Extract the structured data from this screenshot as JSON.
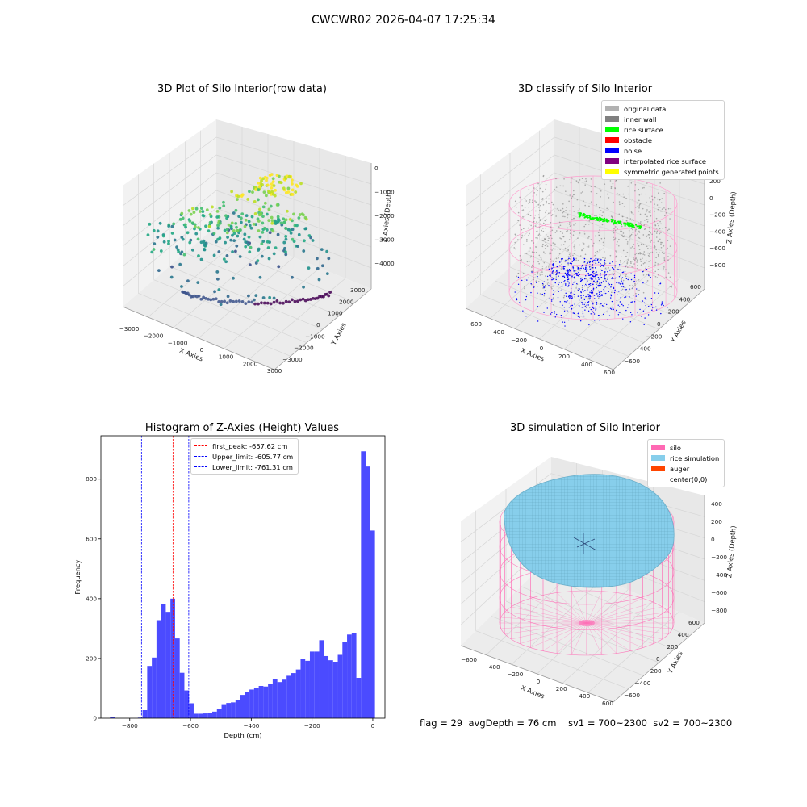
{
  "figure": {
    "suptitle": "CWCWR02 2026-04-07 17:25:34",
    "footer": {
      "flag": "flag = 29",
      "avg_depth": "avgDepth = 76 cm",
      "sv1": "sv1 = 700~2300",
      "sv2": "sv2 = 700~2300"
    }
  },
  "panels": {
    "raw": {
      "title": "3D Plot of Silo Interior(row data)",
      "xlabel": "X Axies",
      "ylabel": "Y Axies",
      "zlabel": "Z Axies (Depth)",
      "x_ticks": [
        "−3000",
        "−2000",
        "−1000",
        "0",
        "1000",
        "2000",
        "3000"
      ],
      "y_ticks": [
        "3000",
        "2000",
        "1000",
        "0",
        "−1000",
        "−2000",
        "−3000"
      ],
      "z_ticks": [
        "0",
        "−1000",
        "−2000",
        "−3000",
        "−4000"
      ]
    },
    "classify": {
      "title": "3D classify of Silo Interior",
      "xlabel": "X Axies",
      "ylabel": "Y Axies",
      "zlabel": "Z Axies (Depth)",
      "x_ticks": [
        "−600",
        "−400",
        "−200",
        "0",
        "200",
        "400",
        "600"
      ],
      "y_ticks": [
        "600",
        "400",
        "200",
        "0",
        "−200",
        "−400",
        "−600"
      ],
      "z_ticks": [
        "200",
        "0",
        "−200",
        "−400",
        "−600",
        "−800"
      ],
      "legend": [
        {
          "label": "original data",
          "color": "#b2b2b2"
        },
        {
          "label": "inner wall",
          "color": "#808080"
        },
        {
          "label": "rice surface",
          "color": "#00ff00"
        },
        {
          "label": "obstacle",
          "color": "#ff0000"
        },
        {
          "label": "noise",
          "color": "#0000ff"
        },
        {
          "label": "interpolated rice surface",
          "color": "#800080"
        },
        {
          "label": "symmetric generated points",
          "color": "#ffff00"
        }
      ]
    },
    "histogram": {
      "title": "Histogram of Z-Axies (Height) Values",
      "xlabel": "Depth (cm)",
      "ylabel": "Frequency",
      "x_ticks": [
        "−800",
        "−600",
        "−400",
        "−200",
        "0"
      ],
      "y_ticks": [
        "0",
        "200",
        "400",
        "600",
        "800"
      ],
      "legend": [
        {
          "label": "first_peak: -657.62 cm",
          "color": "#ff0000"
        },
        {
          "label": "Upper_limit: -605.77 cm",
          "color": "#0000ff"
        },
        {
          "label": "Lower_limit: -761.31 cm",
          "color": "#0000ff"
        }
      ]
    },
    "simulation": {
      "title": "3D simulation of Silo Interior",
      "xlabel": "X Axies",
      "ylabel": "Y Axies",
      "zlabel": "Z Axies (Depth)",
      "x_ticks": [
        "−600",
        "−400",
        "−200",
        "0",
        "200",
        "400",
        "600"
      ],
      "y_ticks": [
        "600",
        "400",
        "200",
        "0",
        "−200",
        "−400",
        "−600"
      ],
      "z_ticks": [
        "400",
        "200",
        "0",
        "−200",
        "−400",
        "−600",
        "−800"
      ],
      "legend": [
        {
          "label": "silo",
          "color": "#ff69b4"
        },
        {
          "label": "rice simulation",
          "color": "#87ceeb"
        },
        {
          "label": "auger",
          "color": "#ff4500"
        },
        {
          "label": "center(0,0)",
          "color": ""
        }
      ]
    }
  },
  "chart_data": {
    "type": "bar",
    "title": "Histogram of Z-Axies (Height) Values",
    "xlabel": "Depth (cm)",
    "ylabel": "Frequency",
    "xlim": [
      -895,
      40
    ],
    "ylim": [
      0,
      945
    ],
    "bin_width": 15.3,
    "bin_starts": [
      -865,
      -849.7,
      -834.4,
      -819.1,
      -803.8,
      -788.5,
      -773.2,
      -757.9,
      -742.6,
      -727.3,
      -712,
      -696.7,
      -681.4,
      -666.1,
      -650.8,
      -635.5,
      -620.2,
      -604.9,
      -589.6,
      -574.3,
      -559,
      -543.7,
      -528.4,
      -513.1,
      -497.8,
      -482.5,
      -467.2,
      -451.9,
      -436.6,
      -421.3,
      -406,
      -390.7,
      -375.4,
      -360.1,
      -344.8,
      -329.5,
      -314.2,
      -298.9,
      -283.6,
      -268.3,
      -253,
      -237.7,
      -222.4,
      -207.1,
      -191.8,
      -176.5,
      -161.2,
      -145.9,
      -130.6,
      -115.3,
      -100,
      -84.7,
      -69.4,
      -54.1,
      -38.8,
      -23.5,
      -8.2
    ],
    "values": [
      3,
      0,
      0,
      0,
      0,
      0,
      2,
      27,
      175,
      203,
      328,
      381,
      356,
      400,
      267,
      152,
      93,
      50,
      15,
      15,
      16,
      17,
      22,
      30,
      47,
      51,
      53,
      60,
      78,
      87,
      96,
      100,
      108,
      106,
      115,
      131,
      121,
      129,
      142,
      151,
      163,
      198,
      192,
      223,
      223,
      261,
      208,
      194,
      189,
      212,
      255,
      280,
      284,
      135,
      893,
      842,
      628
    ],
    "markers": [
      {
        "name": "first_peak",
        "value": -657.62,
        "color": "#ff0000"
      },
      {
        "name": "Upper_limit",
        "value": -605.77,
        "color": "#0000ff"
      },
      {
        "name": "Lower_limit",
        "value": -761.31,
        "color": "#0000ff"
      }
    ],
    "bar_color": "#4b4bff",
    "legend_position": "upper-center"
  }
}
